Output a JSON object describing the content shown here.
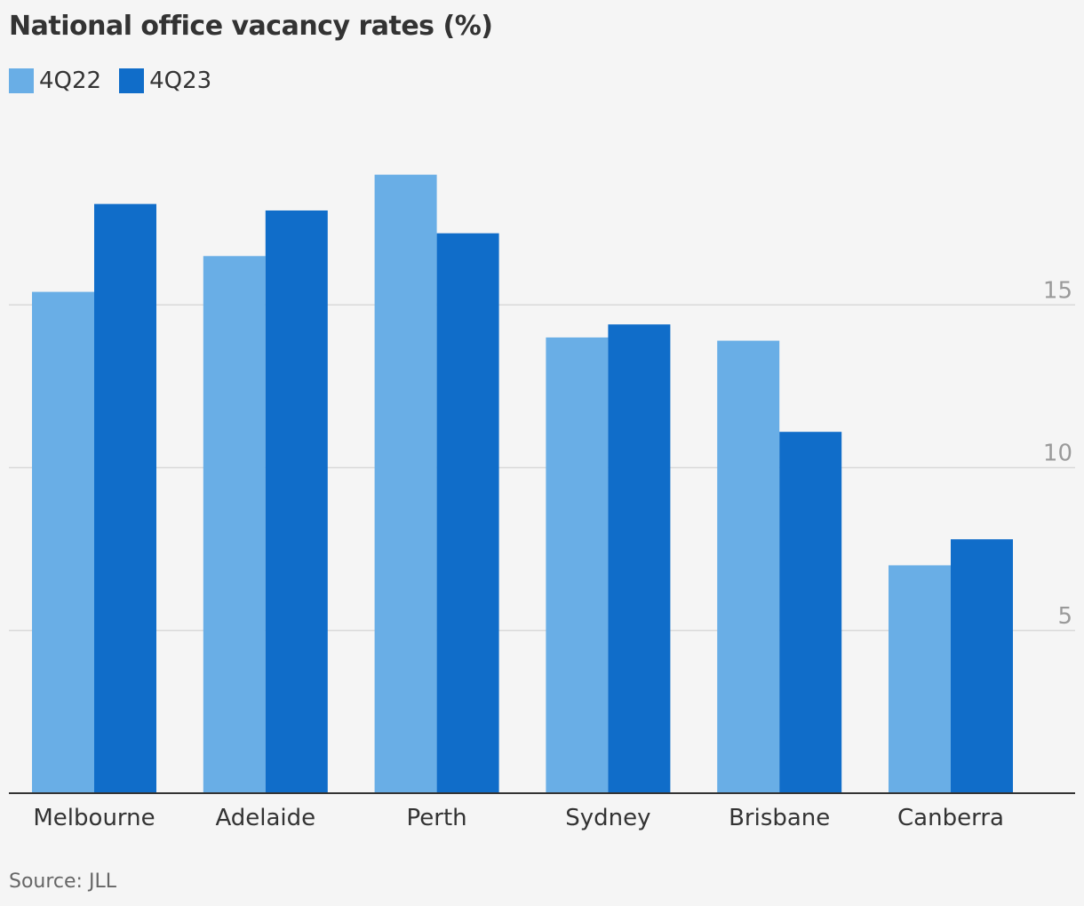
{
  "chart_data": {
    "type": "bar",
    "title": "National office vacancy rates (%)",
    "categories": [
      "Melbourne",
      "Adelaide",
      "Perth",
      "Sydney",
      "Brisbane",
      "Canberra"
    ],
    "series": [
      {
        "name": "4Q22",
        "color": "#69aee6",
        "values": [
          15.4,
          16.5,
          19.0,
          14.0,
          13.9,
          7.0
        ]
      },
      {
        "name": "4Q23",
        "color": "#106dc9",
        "values": [
          18.1,
          17.9,
          17.2,
          14.4,
          11.1,
          7.8
        ]
      }
    ],
    "y_ticks": [
      5,
      10,
      15
    ],
    "ylim": [
      0,
      20
    ],
    "grid": true,
    "legend_position": "top-left",
    "source": "Source: JLL"
  }
}
